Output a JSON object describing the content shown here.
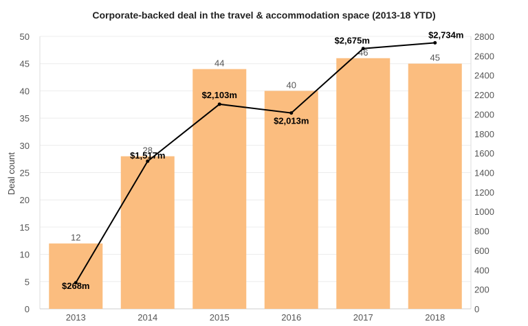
{
  "chart_data": {
    "type": "bar",
    "title": "Corporate-backed deal in the travel & accommodation space (2013-18 YTD)",
    "ylabel": "Deal count",
    "y2label": "",
    "categories": [
      "2013",
      "2014",
      "2015",
      "2016",
      "2017",
      "2018"
    ],
    "series": [
      {
        "type": "bar",
        "axis": "left",
        "values": [
          12,
          28,
          44,
          40,
          46,
          45
        ],
        "labels": [
          "12",
          "28",
          "44",
          "40",
          "46",
          "45"
        ],
        "color": "#fbbd7f"
      },
      {
        "type": "line",
        "axis": "right",
        "values": [
          268,
          1517,
          2103,
          2013,
          2675,
          2734
        ],
        "labels": [
          "$268m",
          "$1,517m",
          "$2,103m",
          "$2,013m",
          "$2,675m",
          "$2,734m"
        ],
        "color": "#000000"
      }
    ],
    "ylim": [
      0,
      50
    ],
    "y2lim": [
      0,
      2800
    ],
    "yticks": [
      "0",
      "5",
      "10",
      "15",
      "20",
      "25",
      "30",
      "35",
      "40",
      "45",
      "50"
    ],
    "y2ticks": [
      "0",
      "200",
      "400",
      "600",
      "800",
      "1000",
      "1200",
      "1400",
      "1600",
      "1800",
      "2000",
      "2200",
      "2400",
      "2600",
      "2800"
    ],
    "grid": true,
    "legend": "none"
  }
}
